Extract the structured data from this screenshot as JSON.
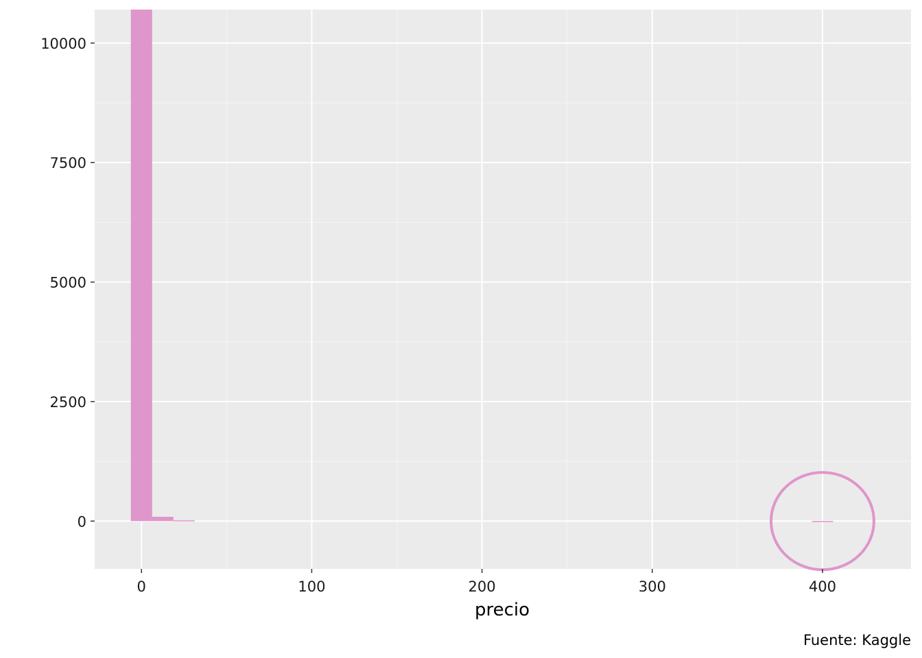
{
  "chart_data": {
    "type": "bar",
    "subtype": "histogram",
    "xlabel": "precio",
    "ylabel": "",
    "caption": "Fuente: Kaggle",
    "xlim": [
      -27.5,
      452
    ],
    "ylim": [
      -1000,
      10700
    ],
    "x_ticks": [
      0,
      100,
      200,
      300,
      400
    ],
    "x_tick_labels": [
      "0",
      "100",
      "200",
      "300",
      "400"
    ],
    "y_ticks": [
      0,
      2500,
      5000,
      7500,
      10000
    ],
    "y_tick_labels": [
      "0",
      "2500",
      "5000",
      "7500",
      "10000"
    ],
    "bin_width": 12.5,
    "bins": [
      {
        "x_start": -6.25,
        "x_end": 6.25,
        "count": 10700
      },
      {
        "x_start": 6.25,
        "x_end": 18.75,
        "count": 90
      },
      {
        "x_start": 18.75,
        "x_end": 31.25,
        "count": 15
      },
      {
        "x_start": 393.75,
        "x_end": 406.25,
        "count": 2
      }
    ],
    "highlight": {
      "shape": "circle",
      "x_center": 400,
      "y_center": 0,
      "label": ""
    },
    "grid": true,
    "colors": {
      "bar_fill": "#df96ca",
      "highlight_stroke": "#df96ca",
      "panel_background": "#ebebeb",
      "grid_major": "#ffffff",
      "grid_minor": "#f5f5f5"
    }
  }
}
